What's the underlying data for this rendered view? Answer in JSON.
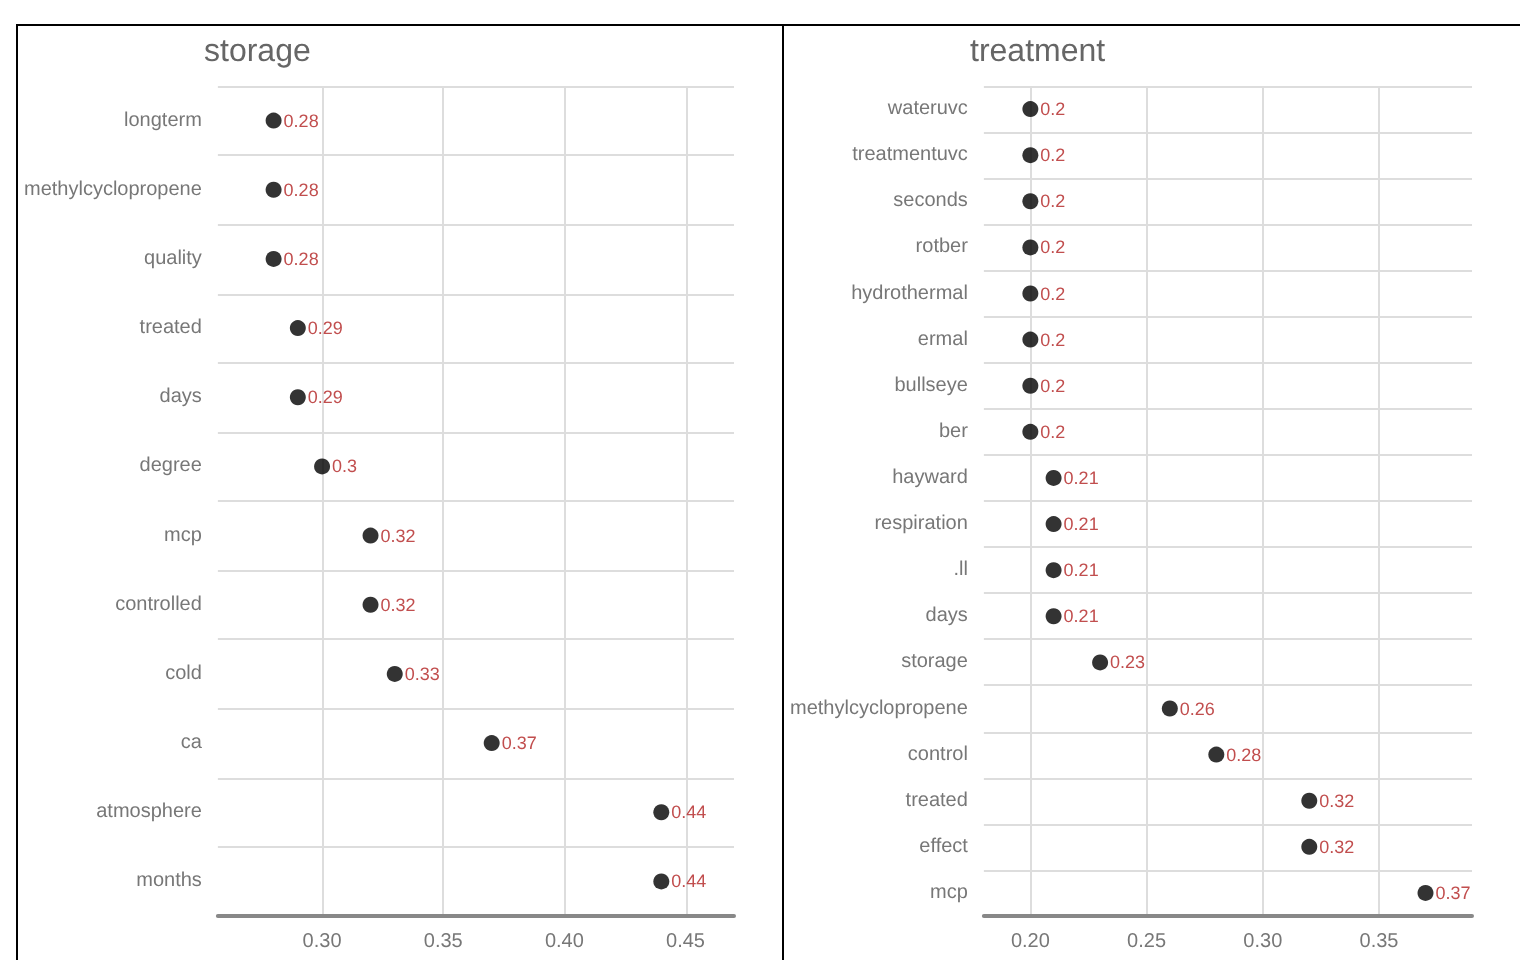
{
  "chart_data": [
    {
      "type": "scatter",
      "title": "storage",
      "orientation": "horizontal",
      "categories": [
        "longterm",
        "methylcyclopropene",
        "quality",
        "treated",
        "days",
        "degree",
        "mcp",
        "controlled",
        "cold",
        "ca",
        "atmosphere",
        "months"
      ],
      "series": [
        {
          "color": "#000000",
          "values": [
            0.28,
            0.28,
            0.28,
            0.29,
            0.29,
            0.3,
            0.32,
            0.32,
            0.33,
            0.37,
            0.44,
            0.44
          ]
        }
      ],
      "xlim": [
        0.257,
        0.47
      ],
      "xticks": [
        {
          "value": 0.3,
          "label": "0.30"
        },
        {
          "value": 0.35,
          "label": "0.35"
        },
        {
          "value": 0.4,
          "label": "0.40"
        },
        {
          "value": 0.45,
          "label": "0.45"
        }
      ],
      "grid": true,
      "data_labels": true,
      "marker": "circle"
    },
    {
      "type": "scatter",
      "title": "treatment",
      "orientation": "horizontal",
      "categories": [
        "wateruvc",
        "treatmentuvc",
        "seconds",
        "rotber",
        "hydrothermal",
        "ermal",
        "bullseye",
        "ber",
        "hayward",
        "respiration",
        ".ll",
        "days",
        "storage",
        "methylcyclopropene",
        "control",
        "treated",
        "effect",
        "mcp"
      ],
      "series": [
        {
          "color": "#000000",
          "values": [
            0.2,
            0.2,
            0.2,
            0.2,
            0.2,
            0.2,
            0.2,
            0.2,
            0.21,
            0.21,
            0.21,
            0.21,
            0.23,
            0.26,
            0.28,
            0.32,
            0.32,
            0.37
          ]
        }
      ],
      "xlim": [
        0.18,
        0.39
      ],
      "xticks": [
        {
          "value": 0.2,
          "label": "0.20"
        },
        {
          "value": 0.25,
          "label": "0.25"
        },
        {
          "value": 0.3,
          "label": "0.30"
        },
        {
          "value": 0.35,
          "label": "0.35"
        }
      ],
      "grid": true,
      "data_labels": true,
      "marker": "circle"
    }
  ]
}
